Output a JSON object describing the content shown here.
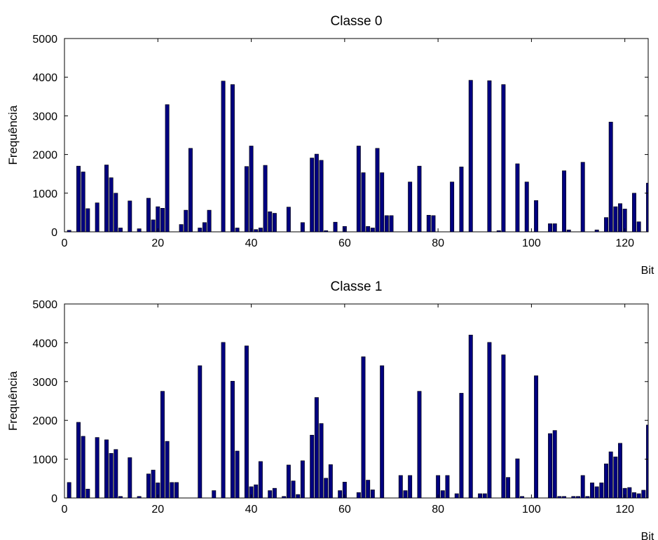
{
  "chart_data": [
    {
      "type": "bar",
      "title": "Classe 0",
      "xlabel": "Bit",
      "ylabel": "Frequência",
      "xlim": [
        0,
        125
      ],
      "ylim": [
        0,
        5000
      ],
      "xticks": [
        0,
        20,
        40,
        60,
        80,
        100,
        120
      ],
      "yticks": [
        0,
        1000,
        2000,
        3000,
        4000,
        5000
      ],
      "grid": false,
      "bar_color": "#00007f",
      "x": [
        1,
        3,
        4,
        5,
        7,
        9,
        10,
        11,
        12,
        14,
        16,
        18,
        19,
        20,
        21,
        22,
        25,
        26,
        27,
        29,
        30,
        31,
        34,
        36,
        37,
        39,
        40,
        41,
        42,
        43,
        44,
        45,
        48,
        51,
        53,
        54,
        55,
        56,
        58,
        60,
        63,
        64,
        65,
        66,
        67,
        68,
        69,
        70,
        74,
        76,
        78,
        79,
        83,
        85,
        87,
        91,
        93,
        94,
        97,
        99,
        101,
        104,
        105,
        107,
        108,
        111,
        114,
        116,
        117,
        118,
        119,
        120,
        122,
        123,
        125
      ],
      "values": [
        40,
        1700,
        1550,
        600,
        750,
        1730,
        1400,
        1000,
        100,
        800,
        80,
        870,
        310,
        650,
        610,
        3290,
        190,
        560,
        2160,
        100,
        240,
        560,
        3900,
        3810,
        100,
        1690,
        2220,
        60,
        100,
        1720,
        520,
        480,
        640,
        240,
        1910,
        2010,
        1850,
        30,
        250,
        140,
        2220,
        1530,
        140,
        100,
        2160,
        1530,
        420,
        420,
        1290,
        1700,
        430,
        420,
        1290,
        1680,
        3920,
        3910,
        30,
        3810,
        1760,
        1290,
        810,
        210,
        210,
        1580,
        50,
        1800,
        50,
        370,
        2840,
        650,
        730,
        590,
        1000,
        260,
        1260
      ]
    },
    {
      "type": "bar",
      "title": "Classe 1",
      "xlabel": "Bit",
      "ylabel": "Frequência",
      "xlim": [
        0,
        125
      ],
      "ylim": [
        0,
        5000
      ],
      "xticks": [
        0,
        20,
        40,
        60,
        80,
        100,
        120
      ],
      "yticks": [
        0,
        1000,
        2000,
        3000,
        4000,
        5000
      ],
      "grid": false,
      "bar_color": "#00007f",
      "x": [
        1,
        3,
        4,
        5,
        7,
        9,
        10,
        11,
        12,
        14,
        16,
        18,
        19,
        20,
        21,
        22,
        23,
        24,
        29,
        32,
        34,
        36,
        37,
        39,
        40,
        41,
        42,
        44,
        45,
        47,
        48,
        49,
        50,
        51,
        53,
        54,
        55,
        56,
        57,
        59,
        60,
        63,
        64,
        65,
        66,
        68,
        72,
        73,
        74,
        76,
        80,
        81,
        82,
        84,
        85,
        87,
        89,
        90,
        91,
        94,
        95,
        97,
        98,
        101,
        104,
        105,
        106,
        107,
        109,
        110,
        111,
        112,
        113,
        114,
        115,
        116,
        117,
        118,
        119,
        120,
        121,
        122,
        123,
        124,
        125
      ],
      "values": [
        400,
        1950,
        1590,
        230,
        1560,
        1500,
        1150,
        1250,
        40,
        1040,
        40,
        620,
        720,
        390,
        2750,
        1460,
        400,
        400,
        3410,
        190,
        4010,
        3010,
        1210,
        3920,
        290,
        340,
        940,
        190,
        250,
        40,
        850,
        440,
        90,
        960,
        1620,
        2590,
        1920,
        510,
        860,
        190,
        410,
        140,
        3640,
        460,
        210,
        3410,
        580,
        190,
        580,
        2750,
        580,
        190,
        580,
        110,
        2700,
        4200,
        110,
        110,
        4010,
        3690,
        530,
        1010,
        40,
        3150,
        1660,
        1740,
        40,
        40,
        40,
        40,
        580,
        40,
        390,
        290,
        390,
        880,
        1190,
        1060,
        1410,
        250,
        270,
        140,
        110,
        200,
        1880
      ]
    }
  ]
}
